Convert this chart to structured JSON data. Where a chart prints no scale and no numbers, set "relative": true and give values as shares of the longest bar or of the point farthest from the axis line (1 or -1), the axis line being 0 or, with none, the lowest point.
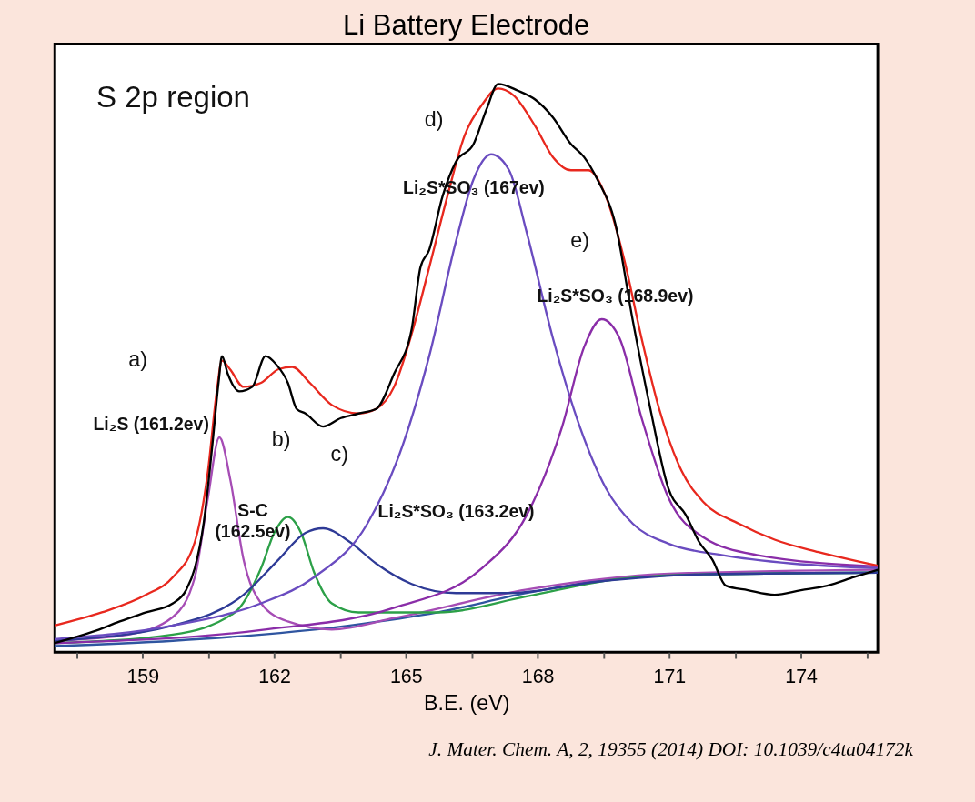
{
  "chart_data": {
    "type": "line",
    "title": "Li Battery Electrode",
    "xlabel": "B.E. (eV)",
    "relative": true,
    "grid": false,
    "legend": false,
    "xlim": [
      157.0,
      175.75
    ],
    "xticks": [
      {
        "value": 157.5,
        "label": null
      },
      159,
      {
        "value": 160.5,
        "label": null
      },
      162,
      {
        "value": 163.5,
        "label": null
      },
      165,
      {
        "value": 166.5,
        "label": null
      },
      168,
      {
        "value": 169.5,
        "label": null
      },
      171,
      {
        "value": 172.5,
        "label": null
      },
      174,
      {
        "value": 175.5,
        "label": null
      }
    ],
    "series": [
      {
        "color": "#2f55a0",
        "x": [
          157.0,
          159.69,
          163.72,
          165.73,
          167.75,
          169.77,
          171.78,
          175.75
        ],
        "values": [
          0.011,
          0.02,
          0.047,
          0.07,
          0.104,
          0.129,
          0.137,
          0.14
        ]
      },
      {
        "color": "#a64db5",
        "x": [
          157.0,
          158.68,
          159.69,
          160.19,
          160.49,
          160.75,
          161.0,
          161.3,
          161.7,
          162.31,
          163.31,
          164.73,
          167.75,
          171.0,
          175.75
        ],
        "values": [
          0.02,
          0.031,
          0.062,
          0.132,
          0.272,
          0.378,
          0.303,
          0.163,
          0.086,
          0.054,
          0.04,
          0.06,
          0.11,
          0.138,
          0.145
        ]
      },
      {
        "color": "#2ca048",
        "x": [
          157.0,
          159.69,
          161.1,
          161.7,
          162.0,
          162.31,
          162.61,
          162.91,
          163.31,
          163.92,
          165.73,
          167.75,
          169.77,
          171.78,
          175.75
        ],
        "values": [
          0.016,
          0.031,
          0.07,
          0.148,
          0.21,
          0.238,
          0.21,
          0.14,
          0.086,
          0.07,
          0.07,
          0.098,
          0.128,
          0.137,
          0.14
        ]
      },
      {
        "color": "#2e3a96",
        "x": [
          157.0,
          159.69,
          161.3,
          162.1,
          162.71,
          163.11,
          163.72,
          164.32,
          165.13,
          166.14,
          167.35,
          169.36,
          171.78,
          175.75
        ],
        "values": [
          0.02,
          0.047,
          0.101,
          0.163,
          0.21,
          0.218,
          0.194,
          0.156,
          0.12,
          0.104,
          0.104,
          0.124,
          0.137,
          0.14
        ]
      },
      {
        "color": "#6a4cc0",
        "x": [
          157.0,
          159.69,
          161.7,
          162.91,
          164.12,
          164.93,
          165.53,
          166.14,
          166.54,
          166.94,
          167.35,
          167.75,
          168.35,
          168.96,
          169.56,
          170.17,
          170.98,
          172.19,
          173.8,
          175.75
        ],
        "values": [
          0.023,
          0.047,
          0.086,
          0.132,
          0.226,
          0.365,
          0.521,
          0.723,
          0.832,
          0.876,
          0.848,
          0.739,
          0.552,
          0.397,
          0.288,
          0.226,
          0.191,
          0.171,
          0.156,
          0.148
        ]
      },
      {
        "color": "#8a2da8",
        "x": [
          157.0,
          161.7,
          164.73,
          166.74,
          167.75,
          168.56,
          169.06,
          169.46,
          169.87,
          170.37,
          170.98,
          171.78,
          172.99,
          175.75
        ],
        "values": [
          0.016,
          0.039,
          0.078,
          0.148,
          0.241,
          0.397,
          0.537,
          0.586,
          0.552,
          0.412,
          0.272,
          0.202,
          0.171,
          0.151
        ]
      },
      {
        "color": "#e8281e",
        "x": [
          157.0,
          158.07,
          159.08,
          159.69,
          160.19,
          160.49,
          160.69,
          160.81,
          160.99,
          161.3,
          161.7,
          162.1,
          162.41,
          162.81,
          163.31,
          163.92,
          164.32,
          164.73,
          165.13,
          165.53,
          165.94,
          166.34,
          166.74,
          167.1,
          167.45,
          167.95,
          168.35,
          168.76,
          169.16,
          169.56,
          169.97,
          170.37,
          170.77,
          171.28,
          171.78,
          172.59,
          173.4,
          174.4,
          175.75
        ],
        "values": [
          0.047,
          0.07,
          0.101,
          0.132,
          0.194,
          0.319,
          0.459,
          0.513,
          0.498,
          0.467,
          0.474,
          0.498,
          0.502,
          0.474,
          0.435,
          0.42,
          0.428,
          0.467,
          0.56,
          0.677,
          0.801,
          0.91,
          0.964,
          0.992,
          0.98,
          0.925,
          0.871,
          0.848,
          0.848,
          0.801,
          0.692,
          0.552,
          0.428,
          0.319,
          0.264,
          0.226,
          0.198,
          0.176,
          0.152
        ]
      },
      {
        "color": "#000000",
        "x": [
          157.0,
          157.87,
          158.48,
          159.08,
          159.69,
          159.99,
          160.19,
          160.39,
          160.59,
          160.73,
          160.81,
          160.94,
          161.2,
          161.5,
          161.8,
          162.06,
          162.31,
          162.51,
          162.71,
          163.11,
          163.52,
          163.92,
          164.32,
          164.73,
          165.13,
          165.33,
          165.53,
          165.83,
          166.14,
          166.54,
          166.84,
          167.1,
          167.55,
          167.95,
          168.35,
          168.76,
          169.06,
          169.36,
          169.77,
          170.17,
          170.57,
          170.98,
          171.38,
          171.68,
          171.98,
          172.29,
          172.79,
          173.4,
          174.0,
          174.6,
          175.21,
          175.75
        ],
        "values": [
          0.016,
          0.036,
          0.054,
          0.07,
          0.086,
          0.109,
          0.148,
          0.226,
          0.365,
          0.474,
          0.521,
          0.49,
          0.459,
          0.467,
          0.521,
          0.505,
          0.474,
          0.428,
          0.42,
          0.397,
          0.412,
          0.42,
          0.428,
          0.49,
          0.568,
          0.677,
          0.708,
          0.801,
          0.863,
          0.894,
          0.956,
          1.0,
          0.988,
          0.972,
          0.941,
          0.894,
          0.871,
          0.832,
          0.754,
          0.583,
          0.428,
          0.288,
          0.241,
          0.194,
          0.163,
          0.117,
          0.109,
          0.101,
          0.109,
          0.117,
          0.132,
          0.145
        ]
      }
    ],
    "annotations": [
      "S 2p region",
      "a)",
      "Li₂S (161.2ev)",
      "b)",
      "c)",
      "S-C\n(162.5ev)",
      "Li₂S*SO₃ (163.2ev)",
      "d)",
      "Li₂S*SO₃ (167ev)",
      "e)",
      "Li₂S*SO₃ (168.9ev)",
      "J. Mater. Chem. A, 2, 19355 (2014) DOI: 10.1039/c4ta04172k"
    ]
  }
}
